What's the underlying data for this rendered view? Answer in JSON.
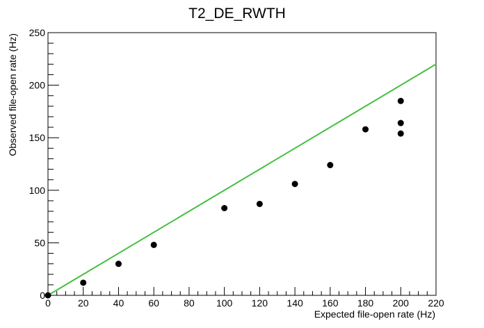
{
  "chart_data": {
    "type": "scatter",
    "title": "T2_DE_RWTH",
    "xlabel": "Expected file-open rate (Hz)",
    "ylabel": "Observed file-open rate (Hz)",
    "xlim": [
      0,
      220
    ],
    "ylim": [
      0,
      250
    ],
    "x_ticks": [
      0,
      20,
      40,
      60,
      80,
      100,
      120,
      140,
      160,
      180,
      200,
      220
    ],
    "y_ticks": [
      0,
      50,
      100,
      150,
      200,
      250
    ],
    "grid": false,
    "series": [
      {
        "type": "scatter",
        "color": "#000000",
        "points": [
          {
            "x": 0,
            "y": 0
          },
          {
            "x": 20,
            "y": 12
          },
          {
            "x": 40,
            "y": 30
          },
          {
            "x": 60,
            "y": 48
          },
          {
            "x": 100,
            "y": 83
          },
          {
            "x": 120,
            "y": 87
          },
          {
            "x": 140,
            "y": 106
          },
          {
            "x": 160,
            "y": 124
          },
          {
            "x": 180,
            "y": 158
          },
          {
            "x": 200,
            "y": 185
          },
          {
            "x": 200,
            "y": 164
          },
          {
            "x": 200,
            "y": 154
          }
        ]
      },
      {
        "type": "line",
        "color": "#44c040",
        "points": [
          {
            "x": 0,
            "y": 0
          },
          {
            "x": 220,
            "y": 220
          }
        ]
      }
    ]
  }
}
